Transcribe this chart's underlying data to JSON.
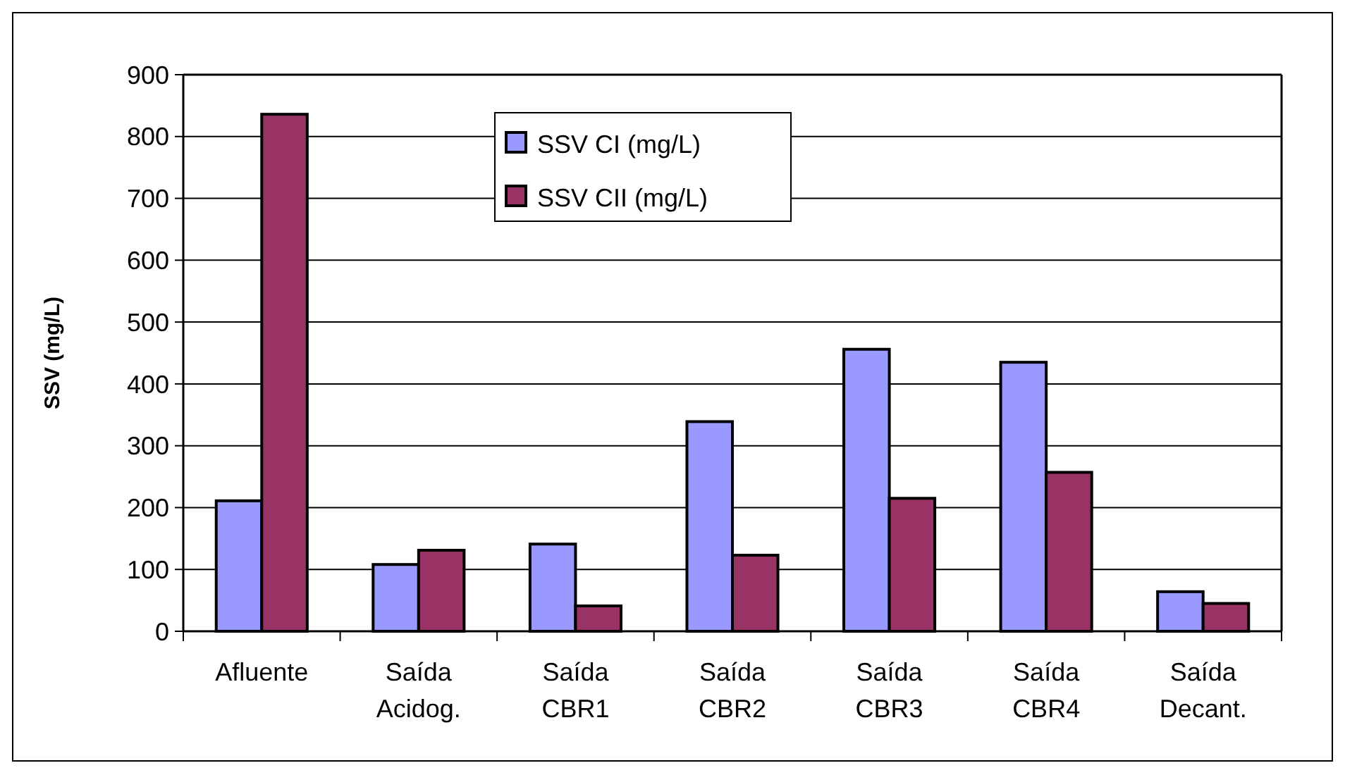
{
  "chart_data": {
    "type": "bar",
    "ylabel": "SSV (mg/L)",
    "categories": [
      "Afluente",
      "Saída Acidog.",
      "Saída CBR1",
      "Saída CBR2",
      "Saída CBR3",
      "Saída CBR4",
      "Saída Decant."
    ],
    "series": [
      {
        "name": "SSV CI (mg/L)",
        "color": "#9999ff",
        "values": [
          211,
          108,
          141,
          339,
          456,
          435,
          64
        ]
      },
      {
        "name": "SSV CII (mg/L)",
        "color": "#993366",
        "values": [
          836,
          131,
          41,
          123,
          215,
          257,
          45
        ]
      }
    ],
    "ylim": [
      0,
      900
    ],
    "yticks": [
      0,
      100,
      200,
      300,
      400,
      500,
      600,
      700,
      800,
      900
    ],
    "grid": "y",
    "legend": "top"
  }
}
